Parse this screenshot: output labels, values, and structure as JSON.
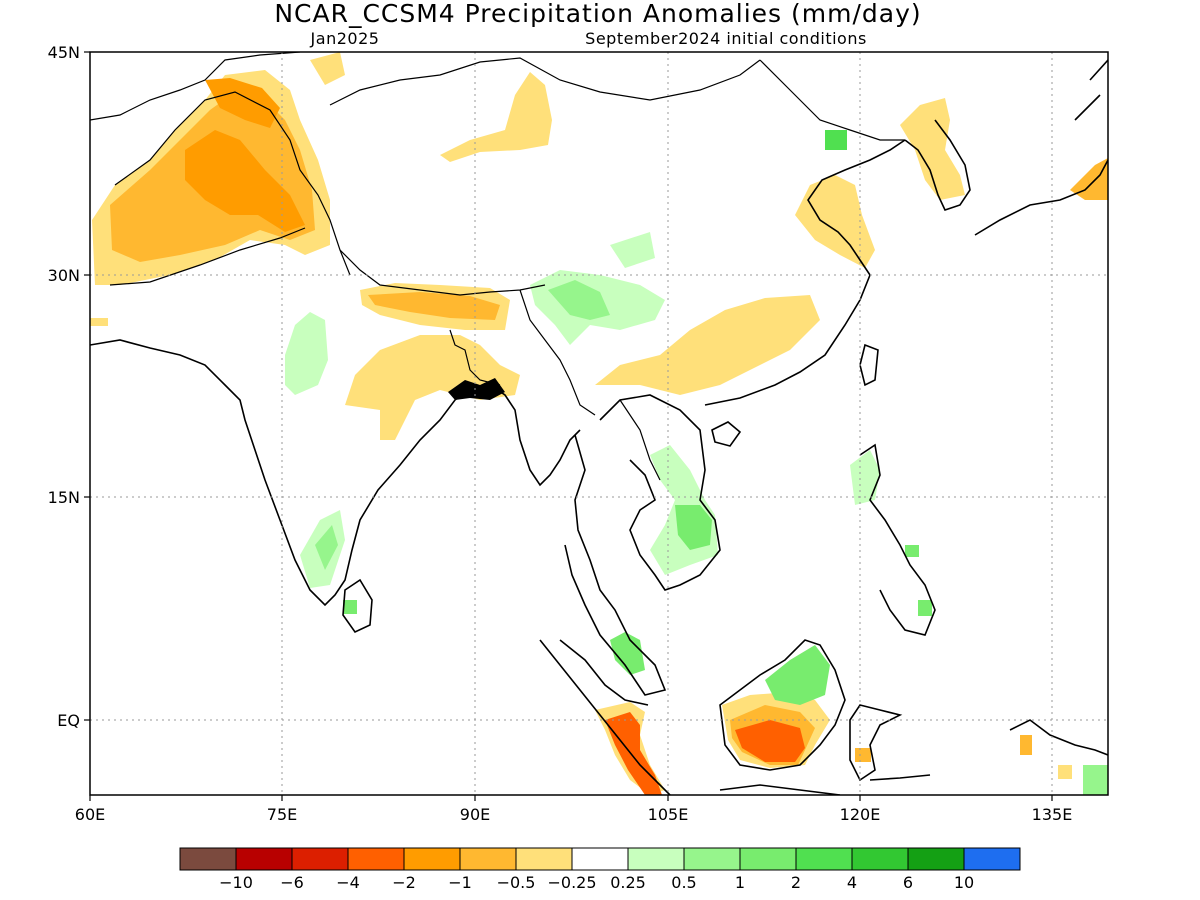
{
  "title": "NCAR_CCSM4 Precipitation Anomalies (mm/day)",
  "subtitle_left": "Jan2025",
  "subtitle_right": "September2024 initial conditions",
  "lat_ticks": [
    "45N",
    "30N",
    "15N",
    "EQ"
  ],
  "lon_ticks": [
    "60E",
    "75E",
    "90E",
    "105E",
    "120E",
    "135E"
  ],
  "colorbar": {
    "labels": [
      "-10",
      "-6",
      "-4",
      "-2",
      "-1",
      "-0.5",
      "-0.25",
      "0.25",
      "0.5",
      "1",
      "2",
      "4",
      "6",
      "10"
    ],
    "colors": [
      "#7b4a3e",
      "#b80000",
      "#dc1f00",
      "#ff6000",
      "#ff9c00",
      "#ffb830",
      "#ffe07a",
      "#ffffff",
      "#c8ffbe",
      "#96f58c",
      "#78ec6e",
      "#50e050",
      "#32c832",
      "#14a014",
      "#1e6ef0"
    ]
  },
  "colors": {
    "land_outline": "#000000",
    "grid": "#9a9a9a",
    "dry_light": "#ffe07a",
    "dry_mid": "#ffb830",
    "dry_strong": "#ff9c00",
    "dry_heavy": "#ff6000",
    "wet_light": "#c8ffbe",
    "wet_mid": "#96f58c",
    "wet_strong": "#50e050"
  }
}
